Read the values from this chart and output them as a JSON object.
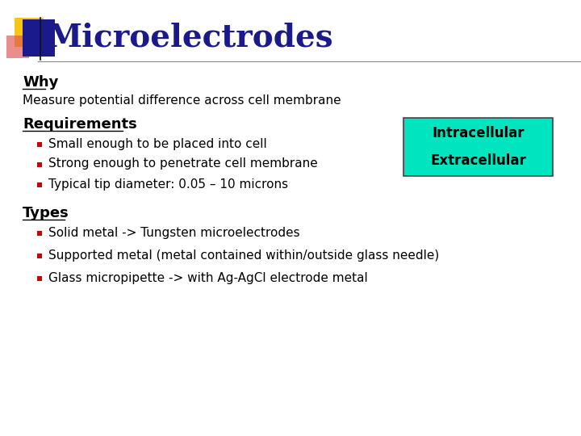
{
  "title": "Microelectrodes",
  "title_color": "#1a1a8c",
  "title_fontsize": 28,
  "background_color": "#ffffff",
  "header_bar_color": "#1a1a8c",
  "header_yellow_color": "#f5c518",
  "header_red_color": "#e05050",
  "section_why": "Why",
  "why_text": "Measure potential difference across cell membrane",
  "section_req": "Requirements",
  "req_bullets": [
    "Small enough to be placed into cell",
    "Strong enough to penetrate cell membrane",
    "Typical tip diameter: 0.05 – 10 microns"
  ],
  "section_types": "Types",
  "types_bullets": [
    "Solid metal -> Tungsten microelectrodes",
    "Supported metal (metal contained within/outside glass needle)",
    "Glass micropipette -> with Ag-AgCl electrode metal"
  ],
  "box_color": "#00e5c0",
  "box_text1": "Intracellular",
  "box_text2": "Extracellular",
  "box_text_color": "#000000",
  "bullet_color": "#cc0000",
  "text_color": "#000000",
  "section_fontsize": 13,
  "body_fontsize": 11,
  "line_color": "#aaaaaa"
}
